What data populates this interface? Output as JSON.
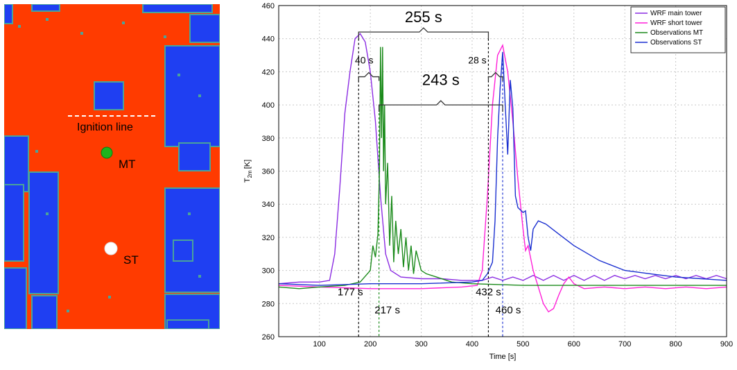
{
  "map": {
    "ignition_label": "Ignition line",
    "mt_label": "MT",
    "st_label": "ST",
    "colors": {
      "burned": "#ff3b00",
      "unburned": "#1f3ff2",
      "edge": "#4aa39a",
      "mt_marker": "#1db41d",
      "st_marker": "#ffffff"
    }
  },
  "chart_data": {
    "type": "line",
    "xlabel": "Time [s]",
    "ylabel": "T2m [K]",
    "ylabel_main": "T",
    "ylabel_sub": "2m",
    "ylabel_unit": "[K]",
    "xlim": [
      20,
      900
    ],
    "ylim": [
      260,
      460
    ],
    "xticks": [
      100,
      200,
      300,
      400,
      500,
      600,
      700,
      800,
      900
    ],
    "yticks": [
      260,
      280,
      300,
      320,
      340,
      360,
      380,
      400,
      420,
      440,
      460
    ],
    "grid": true,
    "legend_position": "top-right",
    "series": [
      {
        "name": "WRF main tower",
        "legend_label": "WRF main tower",
        "color": "#8a2be2",
        "points": [
          [
            20,
            292
          ],
          [
            60,
            293
          ],
          [
            100,
            293
          ],
          [
            120,
            294
          ],
          [
            130,
            310
          ],
          [
            140,
            350
          ],
          [
            150,
            395
          ],
          [
            160,
            420
          ],
          [
            170,
            440
          ],
          [
            180,
            443
          ],
          [
            190,
            438
          ],
          [
            200,
            420
          ],
          [
            210,
            390
          ],
          [
            220,
            345
          ],
          [
            230,
            310
          ],
          [
            240,
            300
          ],
          [
            260,
            296
          ],
          [
            300,
            295
          ],
          [
            340,
            295
          ],
          [
            380,
            294
          ],
          [
            420,
            294
          ],
          [
            440,
            296
          ],
          [
            460,
            294
          ],
          [
            480,
            296
          ],
          [
            500,
            294
          ],
          [
            520,
            297
          ],
          [
            540,
            294
          ],
          [
            560,
            297
          ],
          [
            580,
            294
          ],
          [
            600,
            297
          ],
          [
            620,
            294
          ],
          [
            640,
            297
          ],
          [
            660,
            294
          ],
          [
            680,
            297
          ],
          [
            700,
            295
          ],
          [
            720,
            297
          ],
          [
            740,
            295
          ],
          [
            760,
            297
          ],
          [
            780,
            295
          ],
          [
            800,
            297
          ],
          [
            820,
            295
          ],
          [
            840,
            297
          ],
          [
            860,
            295
          ],
          [
            880,
            297
          ],
          [
            900,
            295
          ]
        ]
      },
      {
        "name": "WRF short tower",
        "legend_label": "WRF short tower",
        "color": "#ff1fd8",
        "points": [
          [
            20,
            291
          ],
          [
            100,
            290
          ],
          [
            200,
            289
          ],
          [
            300,
            289
          ],
          [
            380,
            290
          ],
          [
            410,
            291
          ],
          [
            420,
            300
          ],
          [
            430,
            345
          ],
          [
            440,
            400
          ],
          [
            450,
            430
          ],
          [
            460,
            436
          ],
          [
            470,
            420
          ],
          [
            480,
            390
          ],
          [
            490,
            355
          ],
          [
            500,
            325
          ],
          [
            505,
            312
          ],
          [
            510,
            315
          ],
          [
            520,
            300
          ],
          [
            530,
            290
          ],
          [
            540,
            280
          ],
          [
            550,
            275
          ],
          [
            560,
            277
          ],
          [
            570,
            285
          ],
          [
            580,
            292
          ],
          [
            590,
            296
          ],
          [
            600,
            292
          ],
          [
            620,
            289
          ],
          [
            660,
            290
          ],
          [
            700,
            289
          ],
          [
            740,
            290
          ],
          [
            780,
            289
          ],
          [
            820,
            290
          ],
          [
            860,
            289
          ],
          [
            900,
            290
          ]
        ]
      },
      {
        "name": "Observations MT",
        "legend_label": "Observations MT",
        "color": "#1a8a1a",
        "points": [
          [
            20,
            290
          ],
          [
            60,
            289
          ],
          [
            100,
            290
          ],
          [
            150,
            291
          ],
          [
            180,
            293
          ],
          [
            200,
            300
          ],
          [
            205,
            315
          ],
          [
            210,
            308
          ],
          [
            215,
            322
          ],
          [
            218,
            360
          ],
          [
            220,
            435
          ],
          [
            222,
            380
          ],
          [
            224,
            435
          ],
          [
            226,
            360
          ],
          [
            228,
            400
          ],
          [
            230,
            340
          ],
          [
            234,
            365
          ],
          [
            238,
            315
          ],
          [
            242,
            345
          ],
          [
            246,
            305
          ],
          [
            250,
            330
          ],
          [
            255,
            310
          ],
          [
            260,
            325
          ],
          [
            265,
            302
          ],
          [
            270,
            320
          ],
          [
            275,
            300
          ],
          [
            280,
            315
          ],
          [
            285,
            298
          ],
          [
            290,
            312
          ],
          [
            300,
            300
          ],
          [
            310,
            298
          ],
          [
            330,
            296
          ],
          [
            360,
            293
          ],
          [
            400,
            292
          ],
          [
            500,
            291
          ],
          [
            600,
            291
          ],
          [
            700,
            291
          ],
          [
            800,
            291
          ],
          [
            900,
            291
          ]
        ]
      },
      {
        "name": "Observations ST",
        "legend_label": "Observations ST",
        "color": "#1a2fd0",
        "points": [
          [
            20,
            292
          ],
          [
            100,
            291
          ],
          [
            200,
            292
          ],
          [
            300,
            292
          ],
          [
            400,
            293
          ],
          [
            420,
            294
          ],
          [
            430,
            298
          ],
          [
            440,
            305
          ],
          [
            445,
            330
          ],
          [
            450,
            380
          ],
          [
            455,
            410
          ],
          [
            460,
            432
          ],
          [
            465,
            400
          ],
          [
            470,
            370
          ],
          [
            475,
            415
          ],
          [
            480,
            398
          ],
          [
            485,
            345
          ],
          [
            490,
            338
          ],
          [
            500,
            335
          ],
          [
            505,
            336
          ],
          [
            510,
            320
          ],
          [
            515,
            312
          ],
          [
            520,
            325
          ],
          [
            530,
            330
          ],
          [
            545,
            328
          ],
          [
            570,
            322
          ],
          [
            600,
            315
          ],
          [
            650,
            306
          ],
          [
            700,
            300
          ],
          [
            750,
            298
          ],
          [
            800,
            296
          ],
          [
            850,
            295
          ],
          [
            900,
            294
          ]
        ]
      }
    ],
    "annotations": [
      {
        "label": "255 s",
        "from": 177,
        "to": 432
      },
      {
        "label": "243 s",
        "from": 217,
        "to": 460
      },
      {
        "label": "40 s",
        "from": 177,
        "to": 217
      },
      {
        "label": "28 s",
        "from": 432,
        "to": 460
      },
      {
        "label": "177 s",
        "at": 177
      },
      {
        "label": "217 s",
        "at": 217
      },
      {
        "label": "432 s",
        "at": 432
      },
      {
        "label": "460 s",
        "at": 460
      }
    ]
  }
}
